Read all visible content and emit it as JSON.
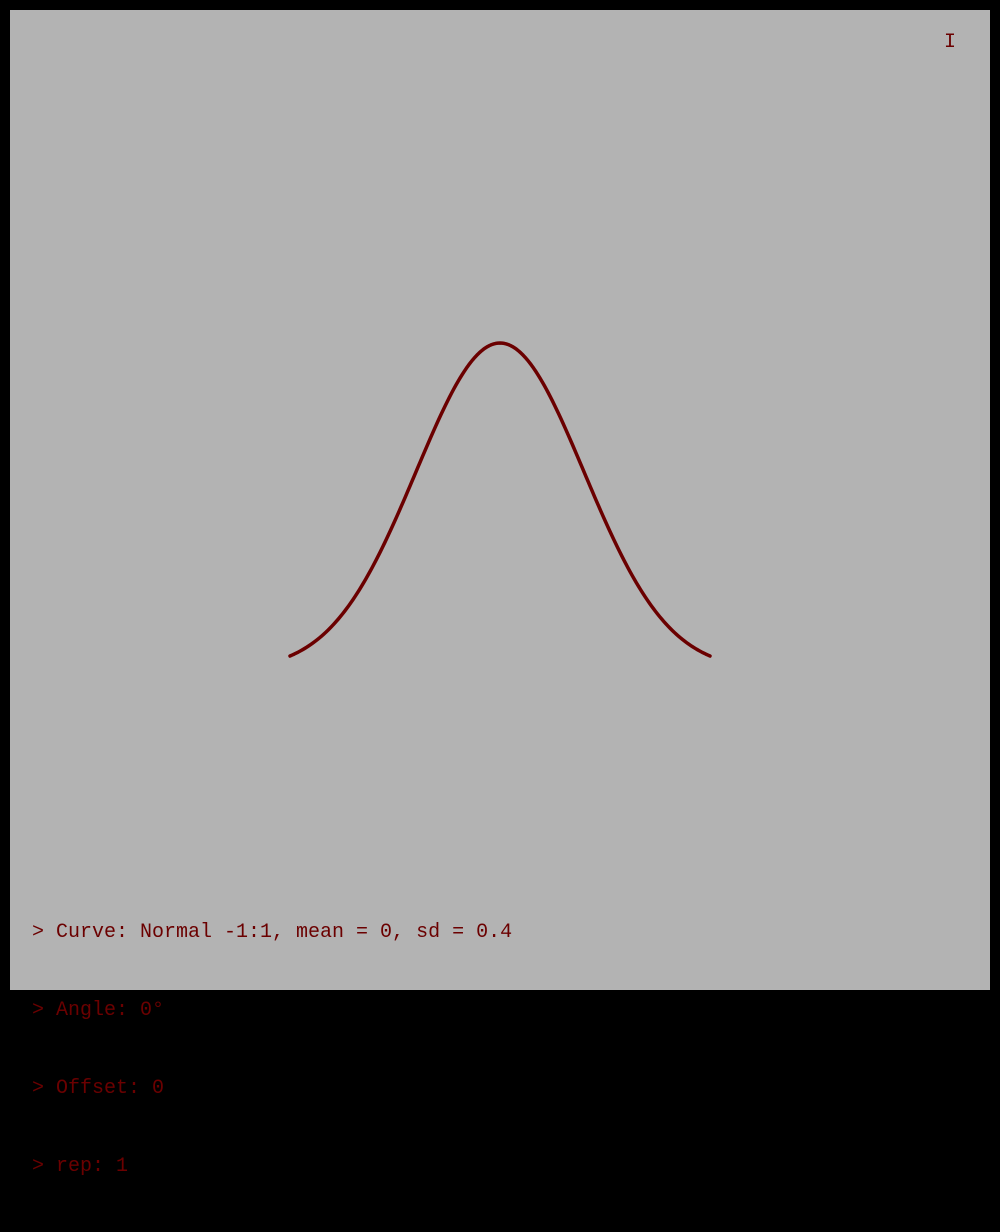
{
  "canvas": {
    "background": "#b3b3b3",
    "border_color": "#000000",
    "indicator": "I"
  },
  "curve": {
    "type": "normal",
    "x_range": [
      -1,
      1
    ],
    "mean": 0,
    "sd": 0.4,
    "angle_deg": 0,
    "offset": 0,
    "rep": 1,
    "color": "#6b0000"
  },
  "console": {
    "text_color": "#6b0000",
    "lines": [
      "> Curve: Normal -1:1, mean = 0, sd = 0.4",
      "> Angle: 0°",
      "> Offset: 0",
      "> rep: 1"
    ]
  }
}
